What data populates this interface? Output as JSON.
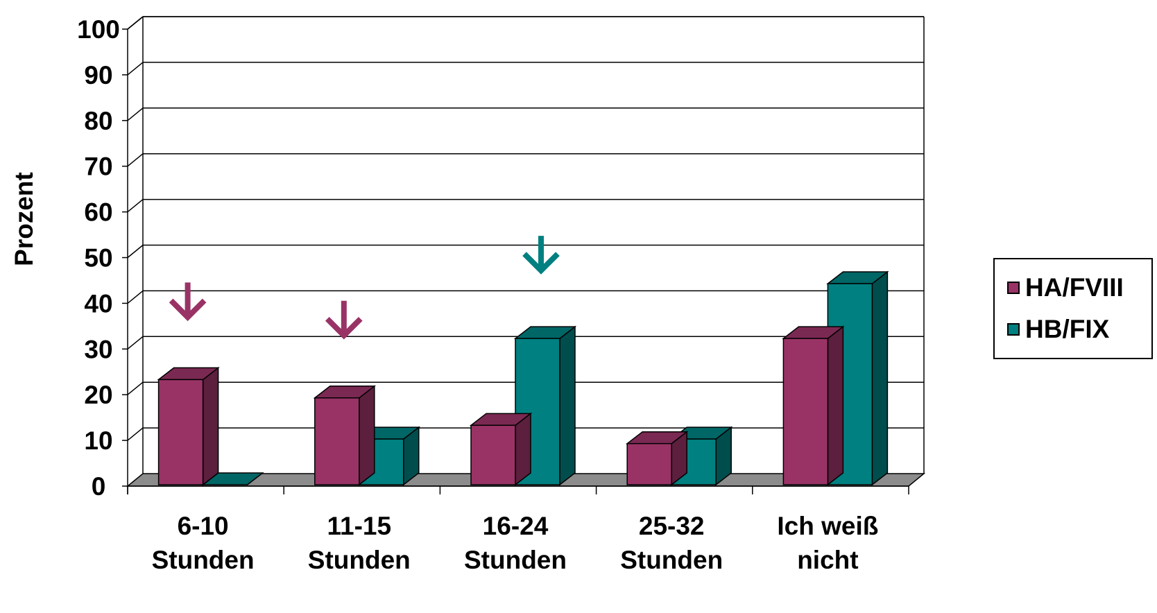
{
  "chart_data": {
    "type": "bar",
    "title": "",
    "xlabel": "",
    "ylabel": "Prozent",
    "ylim": [
      0,
      100
    ],
    "yticks": [
      "0",
      "10",
      "20",
      "30",
      "40",
      "50",
      "60",
      "70",
      "80",
      "90",
      "100"
    ],
    "categories": [
      [
        "6-10",
        "Stunden"
      ],
      [
        "11-15",
        "Stunden"
      ],
      [
        "16-24",
        "Stunden"
      ],
      [
        "25-32",
        "Stunden"
      ],
      [
        "Ich weiß",
        "nicht"
      ]
    ],
    "series": [
      {
        "name": "HA/FVIII",
        "color": "#993366",
        "side_color": "#5c1f3d",
        "top_color": "#7a2952",
        "values": [
          23,
          19,
          13,
          9,
          32
        ]
      },
      {
        "name": "HB/FIX",
        "color": "#008080",
        "side_color": "#004d4d",
        "top_color": "#006666",
        "values": [
          0,
          10,
          32,
          10,
          44
        ]
      }
    ],
    "grid": true,
    "style": "3d-column",
    "legend_position": "right",
    "annotations": [
      {
        "type": "arrow-down",
        "category": "6-10",
        "color": "#993366"
      },
      {
        "type": "arrow-down",
        "category": "11-15",
        "color": "#993366"
      },
      {
        "type": "arrow-down",
        "category": "16-24",
        "color": "#008080"
      }
    ]
  }
}
